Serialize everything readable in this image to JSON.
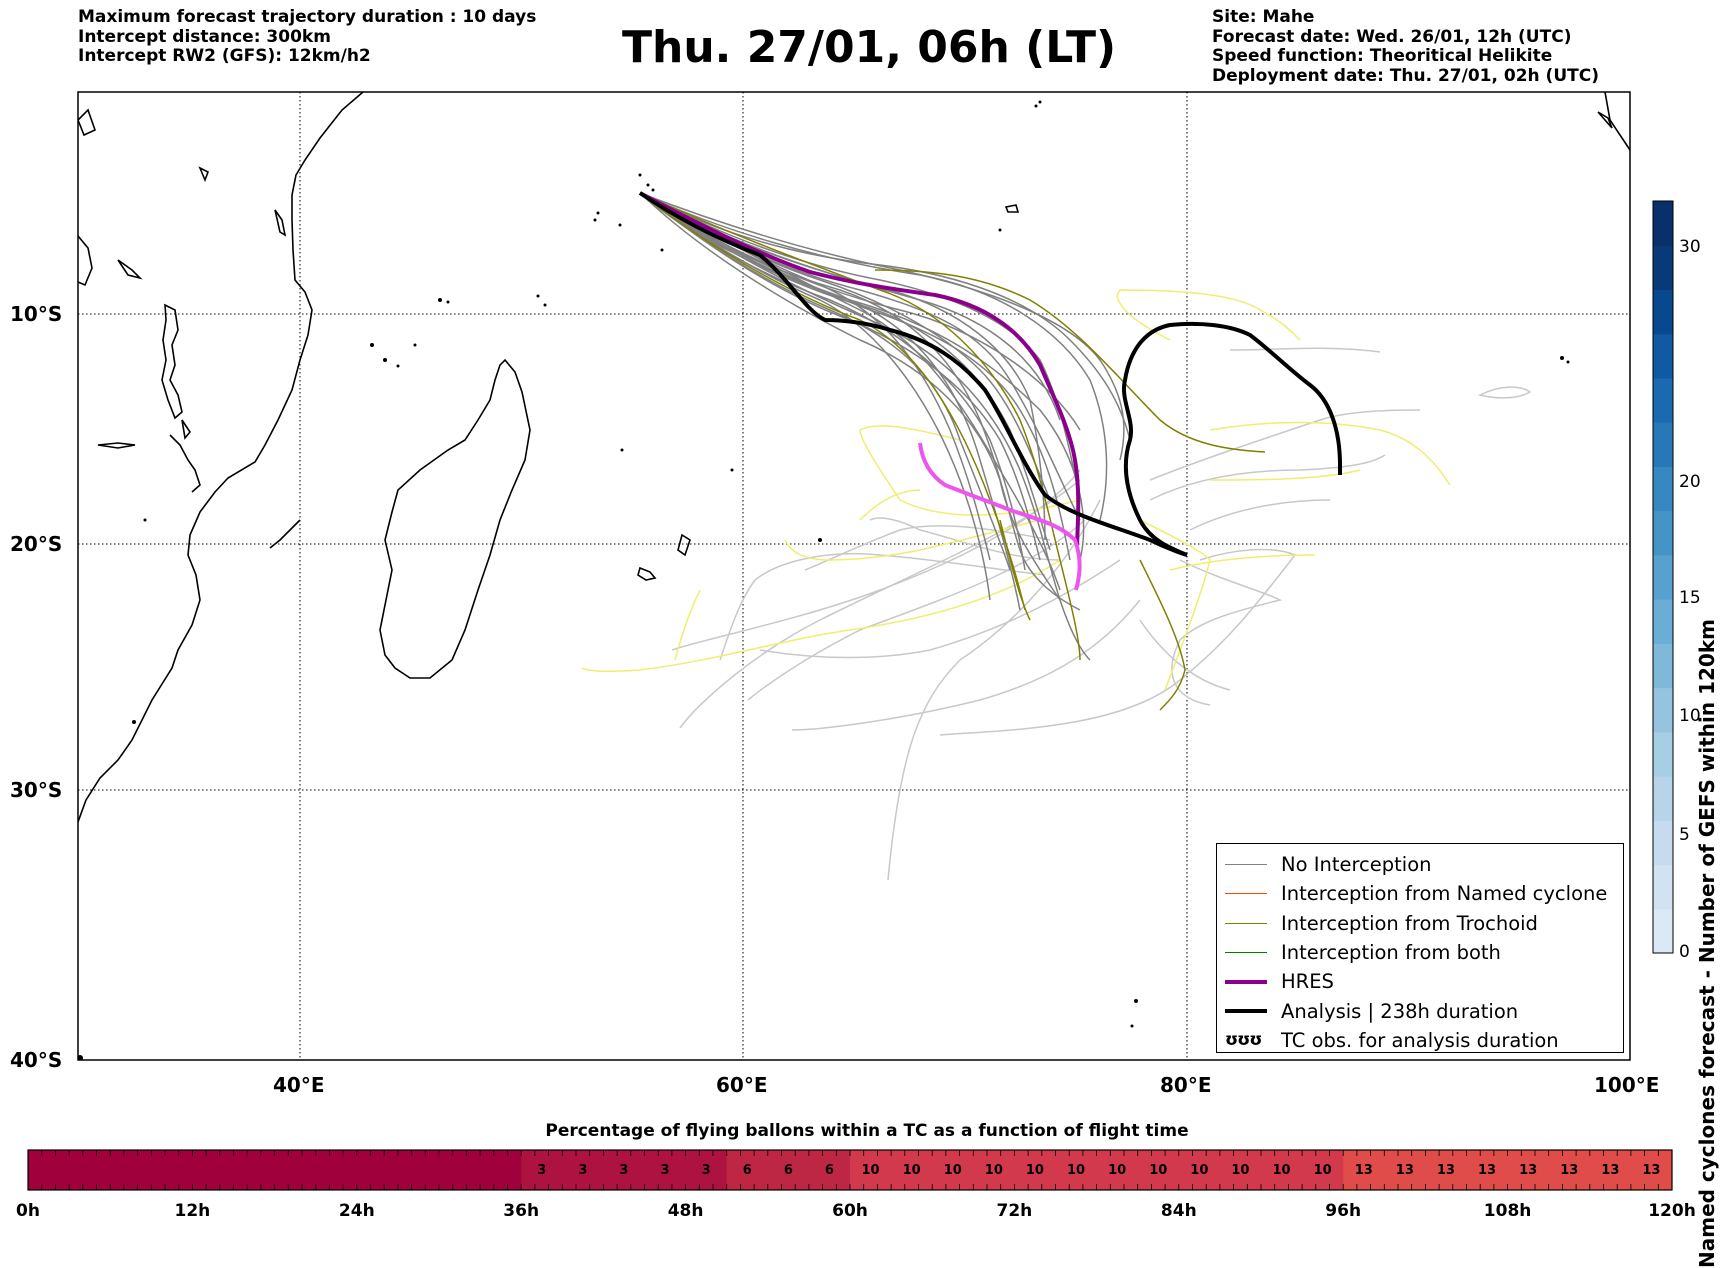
{
  "header": {
    "info_left": [
      "Maximum forecast trajectory duration : 10 days",
      "Intercept distance: 300km",
      "Intercept RW2 (GFS):  12km/h2"
    ],
    "title": "Thu. 27/01, 06h (LT)",
    "info_right": [
      "Site: Mahe",
      "Forecast date: Wed. 26/01, 12h (UTC)",
      "Speed function: Theoritical Helikite",
      "Deployment date: Thu. 27/01, 02h (UTC)"
    ]
  },
  "map": {
    "lat_labels": [
      "10°S",
      "20°S",
      "30°S",
      "40°S"
    ],
    "lon_labels": [
      "40°E",
      "60°E",
      "80°E",
      "100°E"
    ],
    "colors": {
      "no_interception": "#808080",
      "named_cyclone": "#ff4500",
      "trochoid": "#808000",
      "both": "#008000",
      "hres": "#8b008b",
      "analysis": "#000000",
      "light_gray": "#c8c8c8",
      "light_yellow": "#eeee70",
      "pink": "#ee55ee"
    }
  },
  "legend": {
    "items": [
      {
        "label": "No Interception",
        "color": "#808080",
        "width": 1.5
      },
      {
        "label": "Interception from Named cyclone",
        "color": "#ff4500",
        "width": 1.5
      },
      {
        "label": "Interception from Trochoid",
        "color": "#808000",
        "width": 1.5
      },
      {
        "label": "Interception from both",
        "color": "#008000",
        "width": 1.5
      },
      {
        "label": "HRES",
        "color": "#8b008b",
        "width": 4
      },
      {
        "label": "Analysis | 238h duration",
        "color": "#000000",
        "width": 4
      },
      {
        "label": "TC obs. for analysis duration",
        "glyph": "ʊʊʊ"
      }
    ]
  },
  "cyclone_colorbar": {
    "title": "Named cyclones forecast - Number of GEFS within 120km",
    "ticks": [
      "0",
      "5",
      "10",
      "15",
      "20",
      "30"
    ],
    "levels": [
      "#dbe8f5",
      "#d1e2f2",
      "#c6dbef",
      "#b7d4ea",
      "#a6cee4",
      "#94c4df",
      "#7fb9da",
      "#6aaed6",
      "#58a1cf",
      "#4594c7",
      "#3787c0",
      "#2878b8",
      "#1b6aaf",
      "#0f5aa3",
      "#08488e",
      "#083a7a",
      "#08306b"
    ]
  },
  "time_bar": {
    "title": "Percentage of flying ballons within a TC as a function of flight time",
    "labels": [
      "0h",
      "12h",
      "24h",
      "36h",
      "48h",
      "60h",
      "72h",
      "84h",
      "96h",
      "108h",
      "120h"
    ],
    "values": [
      0,
      0,
      0,
      0,
      0,
      0,
      0,
      0,
      0,
      0,
      0,
      0,
      3,
      3,
      3,
      3,
      3,
      6,
      6,
      6,
      10,
      10,
      10,
      10,
      10,
      10,
      10,
      10,
      10,
      10,
      10,
      10,
      13,
      13,
      13,
      13,
      13,
      13,
      13,
      13
    ],
    "color_scale": {
      "0": "#a0003c",
      "3": "#ae1240",
      "6": "#be2744",
      "10": "#d2394c",
      "13": "#df4c4a"
    }
  }
}
